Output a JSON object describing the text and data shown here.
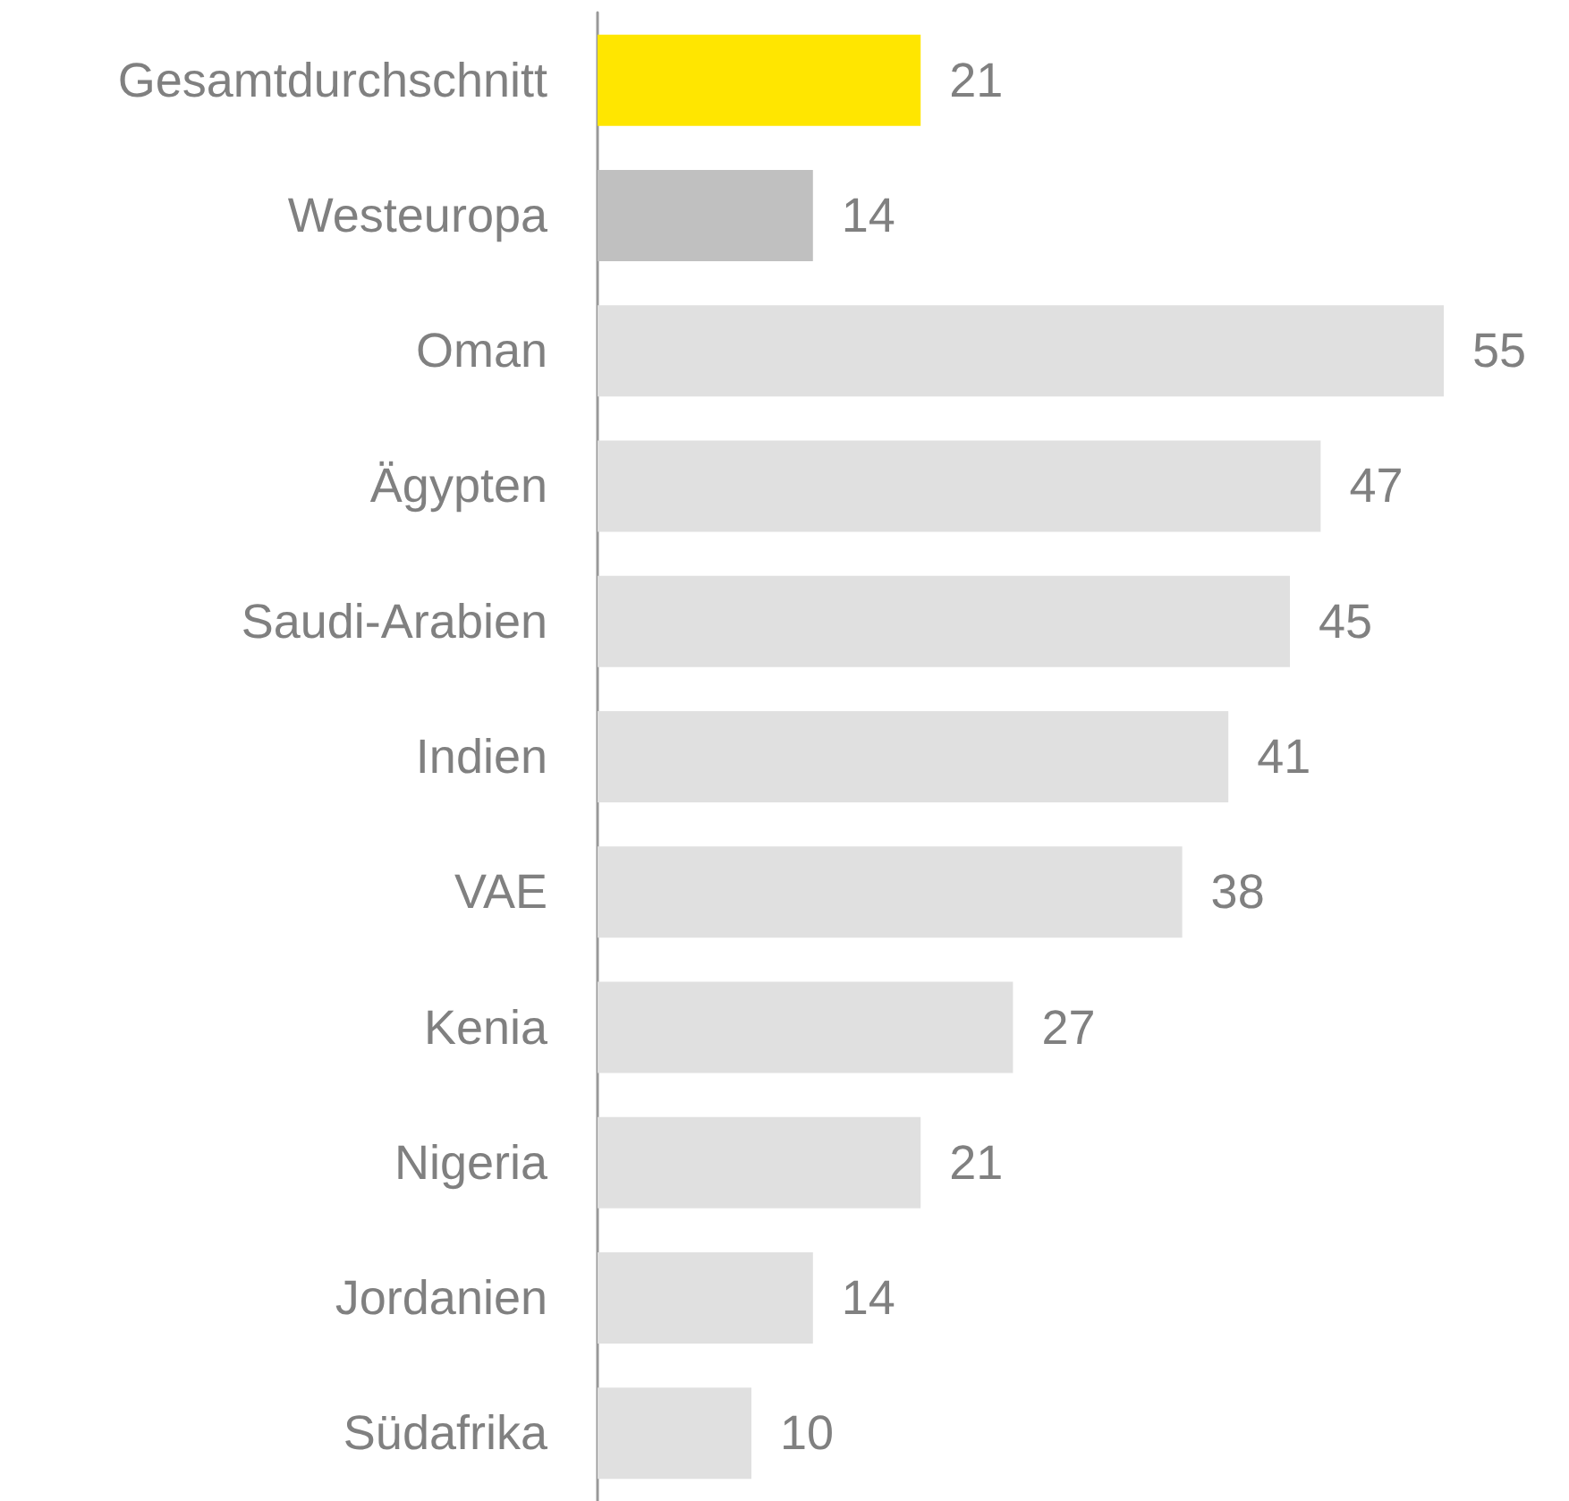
{
  "chart_data": {
    "type": "bar",
    "orientation": "horizontal",
    "categories": [
      "Gesamtdurchschnitt",
      "Westeuropa",
      "Oman",
      "Ägypten",
      "Saudi-Arabien",
      "Indien",
      "VAE",
      "Kenia",
      "Nigeria",
      "Jordanien",
      "Südafrika"
    ],
    "values": [
      21,
      14,
      55,
      47,
      45,
      41,
      38,
      27,
      21,
      14,
      10
    ],
    "colors": [
      "#ffe600",
      "#c0c0c0",
      "#e0e0e0",
      "#e0e0e0",
      "#e0e0e0",
      "#e0e0e0",
      "#e0e0e0",
      "#e0e0e0",
      "#e0e0e0",
      "#e0e0e0",
      "#e0e0e0"
    ],
    "data_labels": true
  }
}
